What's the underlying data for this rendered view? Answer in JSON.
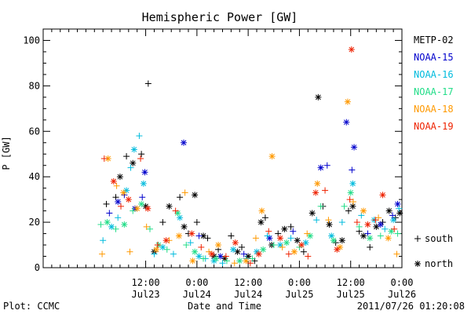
{
  "chart_data": {
    "type": "scatter",
    "title": "Hemispheric Power [GW]",
    "ylabel": "P [GW]",
    "xlabel": "Date and Time",
    "ylim": [
      0,
      105
    ],
    "yticks": [
      0,
      20,
      40,
      60,
      80,
      100
    ],
    "xlim_hours": [
      0,
      84
    ],
    "x_axis_start": "2011-07-22T12:00",
    "xticks": [
      {
        "top": "12:00",
        "bottom": "Jul23",
        "hours": 24
      },
      {
        "top": "0:00",
        "bottom": "Jul24",
        "hours": 36
      },
      {
        "top": "12:00",
        "bottom": "Jul24",
        "hours": 48
      },
      {
        "top": "0:00",
        "bottom": "Jul25",
        "hours": 60
      },
      {
        "top": "12:00",
        "bottom": "Jul25",
        "hours": 72
      },
      {
        "top": "0:00",
        "bottom": "Jul26",
        "hours": 84
      }
    ],
    "grid": false,
    "legend_position": "right",
    "series": [
      {
        "name": "METP-02",
        "color": "#000000",
        "points": [
          [
            "s",
            14.8,
            28
          ],
          [
            "s",
            17.0,
            31
          ],
          [
            "n",
            18.0,
            40
          ],
          [
            "s",
            19.5,
            49
          ],
          [
            "n",
            21.0,
            46
          ],
          [
            "s",
            23.0,
            50
          ],
          [
            "n",
            24.0,
            27
          ],
          [
            "s",
            24.6,
            81
          ],
          [
            "n",
            26.0,
            7
          ],
          [
            "s",
            28.0,
            20
          ],
          [
            "n",
            29.5,
            27
          ],
          [
            "s",
            32.0,
            31
          ],
          [
            "n",
            33.0,
            18
          ],
          [
            "s",
            34.0,
            15
          ],
          [
            "n",
            35.5,
            32
          ],
          [
            "s",
            36.0,
            20
          ],
          [
            "n",
            37.5,
            14
          ],
          [
            "s",
            38.5,
            13
          ],
          [
            "n",
            40.0,
            5
          ],
          [
            "s",
            41.0,
            8
          ],
          [
            "n",
            42.5,
            4
          ],
          [
            "s",
            44.0,
            14
          ],
          [
            "n",
            45.5,
            7
          ],
          [
            "s",
            46.5,
            9
          ],
          [
            "n",
            48.0,
            5
          ],
          [
            "s",
            49.5,
            3
          ],
          [
            "n",
            51.0,
            20
          ],
          [
            "s",
            52.0,
            22
          ],
          [
            "n",
            53.5,
            10
          ],
          [
            "s",
            55.0,
            15
          ],
          [
            "n",
            56.5,
            17
          ],
          [
            "s",
            58.0,
            18
          ],
          [
            "n",
            59.5,
            12
          ],
          [
            "s",
            61.0,
            7
          ],
          [
            "n",
            63.0,
            24
          ],
          [
            "n",
            64.4,
            75
          ],
          [
            "s",
            65.5,
            27
          ],
          [
            "n",
            67.0,
            19
          ],
          [
            "s",
            68.5,
            11
          ],
          [
            "n",
            70.0,
            12
          ],
          [
            "s",
            71.5,
            25
          ],
          [
            "n",
            72.5,
            27
          ],
          [
            "s",
            74.0,
            16
          ],
          [
            "n",
            75.0,
            14
          ],
          [
            "s",
            76.5,
            9
          ],
          [
            "n",
            78.0,
            18
          ],
          [
            "s",
            79.5,
            20
          ],
          [
            "n",
            81.0,
            25
          ],
          [
            "s",
            82.5,
            22
          ],
          [
            "n",
            83.5,
            24
          ]
        ]
      },
      {
        "name": "NOAA-15",
        "color": "#0000cc",
        "points": [
          [
            "s",
            15.5,
            24
          ],
          [
            "n",
            17.5,
            29
          ],
          [
            "s",
            19.0,
            32
          ],
          [
            "n",
            21.5,
            26
          ],
          [
            "s",
            23.2,
            31
          ],
          [
            "n",
            23.8,
            42
          ],
          [
            "n",
            32.9,
            55
          ],
          [
            "s",
            36.5,
            14
          ],
          [
            "n",
            41.5,
            5
          ],
          [
            "s",
            47.0,
            6
          ],
          [
            "n",
            53.0,
            13
          ],
          [
            "s",
            58.5,
            16
          ],
          [
            "n",
            65.0,
            44
          ],
          [
            "s",
            66.5,
            45
          ],
          [
            "n",
            71.0,
            64
          ],
          [
            "s",
            72.3,
            43
          ],
          [
            "n",
            72.8,
            53
          ],
          [
            "s",
            76.0,
            15
          ],
          [
            "n",
            79.0,
            19
          ],
          [
            "s",
            81.8,
            23
          ],
          [
            "n",
            83.0,
            28
          ]
        ]
      },
      {
        "name": "NOAA-16",
        "color": "#00bbdd",
        "points": [
          [
            "s",
            14.0,
            12
          ],
          [
            "n",
            16.0,
            18
          ],
          [
            "s",
            17.5,
            22
          ],
          [
            "n",
            19.5,
            34
          ],
          [
            "s",
            20.5,
            44
          ],
          [
            "n",
            21.3,
            52
          ],
          [
            "s",
            22.5,
            58
          ],
          [
            "n",
            23.5,
            37
          ],
          [
            "s",
            26.0,
            6
          ],
          [
            "n",
            28.0,
            9
          ],
          [
            "s",
            30.5,
            6
          ],
          [
            "n",
            32.0,
            22
          ],
          [
            "s",
            34.5,
            11
          ],
          [
            "n",
            36.5,
            5
          ],
          [
            "s",
            38.0,
            4
          ],
          [
            "n",
            40.0,
            3
          ],
          [
            "s",
            42.0,
            2
          ],
          [
            "n",
            44.5,
            8
          ],
          [
            "s",
            47.5,
            4
          ],
          [
            "n",
            50.0,
            7
          ],
          [
            "s",
            52.5,
            14
          ],
          [
            "n",
            55.5,
            10
          ],
          [
            "s",
            58.0,
            13
          ],
          [
            "n",
            61.5,
            11
          ],
          [
            "s",
            64.0,
            21
          ],
          [
            "n",
            67.5,
            14
          ],
          [
            "s",
            70.0,
            20
          ],
          [
            "n",
            72.5,
            37
          ],
          [
            "s",
            74.5,
            23
          ],
          [
            "n",
            77.5,
            21
          ],
          [
            "s",
            80.0,
            17
          ],
          [
            "n",
            82.0,
            21
          ],
          [
            "s",
            83.3,
            26
          ]
        ]
      },
      {
        "name": "NOAA-17",
        "color": "#22dd88",
        "points": [
          [
            "s",
            13.5,
            19
          ],
          [
            "n",
            15.0,
            20
          ],
          [
            "s",
            17.0,
            17
          ],
          [
            "n",
            19.0,
            19
          ],
          [
            "s",
            21.0,
            25
          ],
          [
            "n",
            23.0,
            28
          ],
          [
            "s",
            25.0,
            17
          ],
          [
            "n",
            27.0,
            10
          ],
          [
            "s",
            29.0,
            8
          ],
          [
            "n",
            31.5,
            24
          ],
          [
            "s",
            33.5,
            10
          ],
          [
            "n",
            35.5,
            7
          ],
          [
            "s",
            37.5,
            4
          ],
          [
            "n",
            40.5,
            4
          ],
          [
            "s",
            43.0,
            3
          ],
          [
            "n",
            46.0,
            3
          ],
          [
            "s",
            49.0,
            4
          ],
          [
            "n",
            51.5,
            8
          ],
          [
            "s",
            54.0,
            10
          ],
          [
            "n",
            57.0,
            11
          ],
          [
            "s",
            60.0,
            9
          ],
          [
            "n",
            62.5,
            14
          ],
          [
            "s",
            65.0,
            27
          ],
          [
            "n",
            68.0,
            12
          ],
          [
            "s",
            70.5,
            27
          ],
          [
            "n",
            72.0,
            33
          ],
          [
            "s",
            74.0,
            18
          ],
          [
            "n",
            76.5,
            13
          ],
          [
            "s",
            79.0,
            14
          ],
          [
            "n",
            81.5,
            16
          ],
          [
            "s",
            83.0,
            15
          ]
        ]
      },
      {
        "name": "NOAA-18",
        "color": "#ff9900",
        "points": [
          [
            "s",
            13.8,
            6
          ],
          [
            "n",
            15.2,
            48
          ],
          [
            "s",
            17.2,
            36
          ],
          [
            "n",
            18.8,
            33
          ],
          [
            "s",
            20.3,
            7
          ],
          [
            "n",
            22.0,
            26
          ],
          [
            "s",
            24.2,
            18
          ],
          [
            "n",
            26.5,
            8
          ],
          [
            "s",
            29.5,
            12
          ],
          [
            "n",
            31.8,
            14
          ],
          [
            "s",
            33.2,
            33
          ],
          [
            "n",
            35.0,
            3
          ],
          [
            "s",
            38.8,
            7
          ],
          [
            "n",
            41.0,
            10
          ],
          [
            "s",
            44.8,
            2
          ],
          [
            "n",
            47.5,
            3
          ],
          [
            "s",
            49.8,
            13
          ],
          [
            "n",
            51.2,
            25
          ],
          [
            "n",
            53.6,
            49
          ],
          [
            "s",
            56.0,
            9
          ],
          [
            "n",
            58.8,
            7
          ],
          [
            "s",
            61.8,
            15
          ],
          [
            "n",
            64.2,
            37
          ],
          [
            "s",
            66.8,
            21
          ],
          [
            "n",
            69.5,
            9
          ],
          [
            "n",
            71.3,
            73
          ],
          [
            "s",
            72.6,
            29
          ],
          [
            "n",
            75.0,
            25
          ],
          [
            "s",
            78.5,
            22
          ],
          [
            "n",
            80.8,
            13
          ],
          [
            "s",
            82.8,
            6
          ]
        ]
      },
      {
        "name": "NOAA-19",
        "color": "#ee2200",
        "points": [
          [
            "s",
            14.3,
            48
          ],
          [
            "n",
            16.5,
            38
          ],
          [
            "s",
            18.2,
            27
          ],
          [
            "n",
            20.0,
            30
          ],
          [
            "s",
            22.8,
            48
          ],
          [
            "n",
            24.5,
            26
          ],
          [
            "s",
            26.8,
            10
          ],
          [
            "n",
            28.8,
            12
          ],
          [
            "s",
            31.0,
            25
          ],
          [
            "n",
            34.8,
            15
          ],
          [
            "s",
            37.0,
            9
          ],
          [
            "n",
            39.5,
            6
          ],
          [
            "s",
            42.8,
            5
          ],
          [
            "n",
            45.0,
            11
          ],
          [
            "s",
            48.5,
            2
          ],
          [
            "n",
            50.5,
            6
          ],
          [
            "s",
            52.8,
            16
          ],
          [
            "n",
            55.5,
            13
          ],
          [
            "s",
            57.5,
            6
          ],
          [
            "n",
            60.5,
            10
          ],
          [
            "s",
            62.0,
            5
          ],
          [
            "n",
            63.8,
            33
          ],
          [
            "s",
            66.0,
            34
          ],
          [
            "n",
            68.8,
            8
          ],
          [
            "s",
            71.8,
            30
          ],
          [
            "n",
            72.2,
            96
          ],
          [
            "s",
            73.5,
            20
          ],
          [
            "n",
            76.0,
            19
          ],
          [
            "s",
            77.8,
            21
          ],
          [
            "n",
            79.5,
            32
          ],
          [
            "s",
            82.2,
            17
          ]
        ]
      }
    ],
    "symbol_legend": [
      {
        "symbol": "+",
        "label": "south"
      },
      {
        "symbol": "*",
        "label": "north"
      }
    ]
  },
  "footer": {
    "left": "Plot: CCMC",
    "center": "Date and Time",
    "right": "2011/07/26 01:20:08"
  }
}
